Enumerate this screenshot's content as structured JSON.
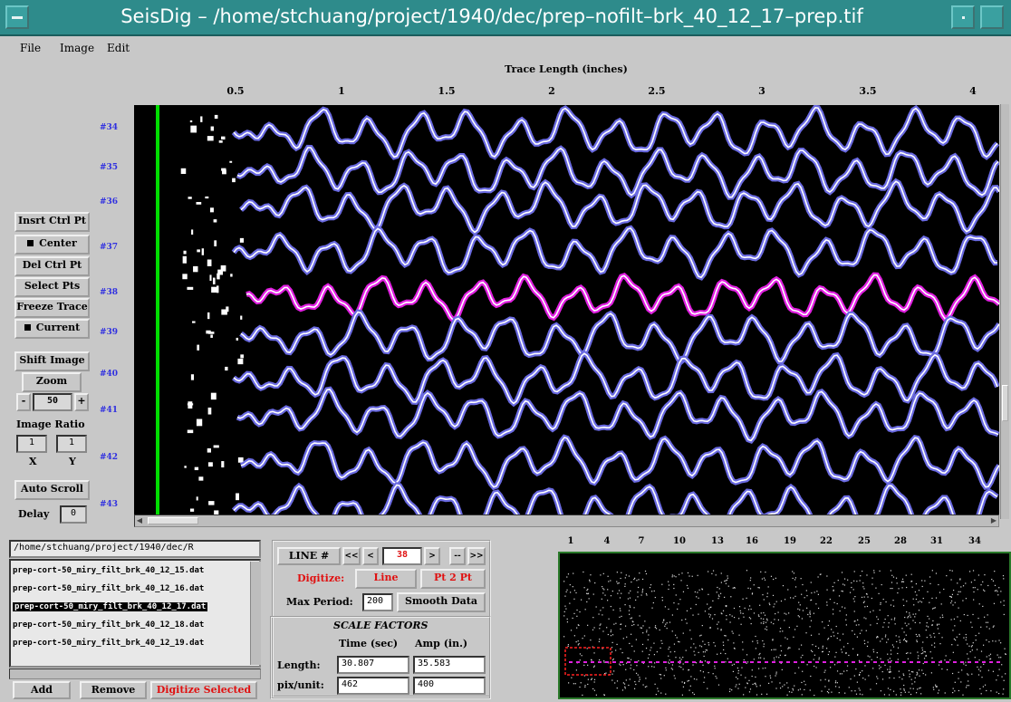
{
  "window": {
    "title": "SeisDig – /home/stchuang/project/1940/dec/prep–nofilt–brk_40_12_17–prep.tif"
  },
  "menu": [
    "File",
    "Image",
    "Edit"
  ],
  "plot": {
    "axis_title": "Trace Length (inches)",
    "x_ticks": [
      "0.5",
      "1",
      "1.5",
      "2",
      "2.5",
      "3",
      "3.5",
      "4"
    ],
    "trace_labels": [
      "#34",
      "#35",
      "#36",
      "#37",
      "#38",
      "#39",
      "#40",
      "#41",
      "#42",
      "#43"
    ],
    "highlighted_trace": "#38",
    "colors": {
      "trace": "#6a6ae0",
      "highlight": "#e020e0",
      "bright": "#ffffff",
      "cursor_line": "#00dd00",
      "background": "#000000"
    }
  },
  "left_controls": {
    "insert_ctrl_pt": "Insrt Ctrl Pt",
    "center": "Center",
    "del_ctrl_pt": "Del Ctrl Pt",
    "select_pts": "Select Pts",
    "freeze_trace": "Freeze Trace",
    "current": "Current",
    "shift_image": "Shift Image",
    "zoom": "Zoom",
    "zoom_minus": "-",
    "zoom_value": "50",
    "zoom_plus": "+",
    "image_ratio_label": "Image Ratio",
    "ratio_x_value": "1",
    "ratio_y_value": "1",
    "x_label": "X",
    "y_label": "Y",
    "auto_scroll": "Auto Scroll",
    "delay_label": "Delay",
    "delay_value": "0"
  },
  "file_browser": {
    "path": "/home/stchuang/project/1940/dec/R",
    "files": [
      "prep-cort-50_miry_filt_brk_40_12_15.dat",
      "prep-cort-50_miry_filt_brk_40_12_16.dat",
      "prep-cort-50_miry_filt_brk_40_12_17.dat",
      "prep-cort-50_miry_filt_brk_40_12_18.dat",
      "prep-cort-50_miry_filt_brk_40_12_19.dat"
    ],
    "selected_index": 2,
    "add": "Add",
    "remove": "Remove",
    "digitize_selected": "Digitize Selected"
  },
  "line_panel": {
    "line_label": "LINE #",
    "nav_first": "<<",
    "nav_prev": "<",
    "line_value": "38",
    "nav_next": ">",
    "nav_dash": "--",
    "nav_last": ">>",
    "digitize_label": "Digitize:",
    "line_button": "Line",
    "pt2pt_button": "Pt 2 Pt",
    "max_period_label": "Max Period:",
    "max_period_value": "200",
    "smooth_data": "Smooth Data"
  },
  "scale_factors": {
    "title": "SCALE FACTORS",
    "time_header": "Time (sec)",
    "amp_header": "Amp (in.)",
    "length_label": "Length:",
    "length_time": "30.807",
    "length_amp": "35.583",
    "pix_label": "pix/unit:",
    "pix_time": "462",
    "pix_amp": "400"
  },
  "overview": {
    "ticks": [
      "1",
      "4",
      "7",
      "10",
      "13",
      "16",
      "19",
      "22",
      "25",
      "28",
      "31",
      "34"
    ]
  }
}
